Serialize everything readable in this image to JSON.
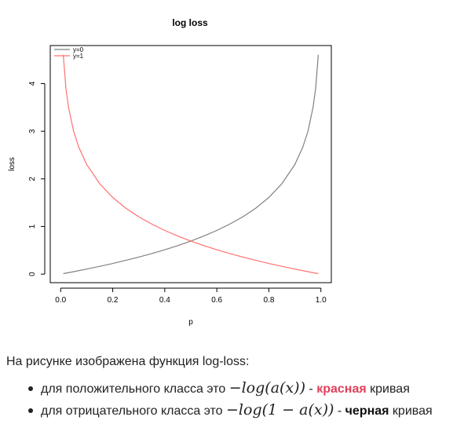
{
  "chart_data": {
    "type": "line",
    "title": "log loss",
    "xlabel": "p",
    "ylabel": "loss",
    "xlim": [
      -0.04,
      1.04
    ],
    "ylim": [
      -0.18,
      4.8
    ],
    "xticks": [
      "0.0",
      "0.2",
      "0.4",
      "0.6",
      "0.8",
      "1.0"
    ],
    "yticks": [
      "0",
      "1",
      "2",
      "3",
      "4"
    ],
    "grid": false,
    "legend_position": "top-left",
    "series": [
      {
        "name": "y=0",
        "color": "#808080",
        "x": [
          0.01,
          0.05,
          0.1,
          0.15,
          0.2,
          0.25,
          0.3,
          0.35,
          0.4,
          0.45,
          0.5,
          0.55,
          0.6,
          0.65,
          0.7,
          0.75,
          0.8,
          0.85,
          0.9,
          0.93,
          0.95,
          0.97,
          0.98,
          0.99
        ],
        "y": [
          0.01,
          0.051,
          0.105,
          0.163,
          0.223,
          0.288,
          0.357,
          0.431,
          0.511,
          0.598,
          0.693,
          0.799,
          0.916,
          1.05,
          1.204,
          1.386,
          1.609,
          1.897,
          2.303,
          2.659,
          2.996,
          3.507,
          3.912,
          4.605
        ]
      },
      {
        "name": "y=1",
        "color": "#ff7070",
        "x": [
          0.01,
          0.02,
          0.03,
          0.05,
          0.07,
          0.1,
          0.15,
          0.2,
          0.25,
          0.3,
          0.35,
          0.4,
          0.45,
          0.5,
          0.55,
          0.6,
          0.65,
          0.7,
          0.75,
          0.8,
          0.85,
          0.9,
          0.95,
          0.99
        ],
        "y": [
          4.605,
          3.912,
          3.507,
          2.996,
          2.659,
          2.303,
          1.897,
          1.609,
          1.386,
          1.204,
          1.05,
          0.916,
          0.799,
          0.693,
          0.598,
          0.511,
          0.431,
          0.357,
          0.288,
          0.223,
          0.163,
          0.105,
          0.051,
          0.01
        ]
      }
    ]
  },
  "text": {
    "intro": "На рисунке изображена функция log-loss:",
    "bullet1_prefix": "для положительного класса это ",
    "bullet1_formula": "−log(a(x))",
    "bullet1_sep": " - ",
    "bullet1_colored": "красная",
    "bullet1_suffix": " кривая",
    "bullet2_prefix": "для отрицательного класса это ",
    "bullet2_formula": "−log(1 − a(x))",
    "bullet2_sep": " - ",
    "bullet2_colored": "черная",
    "bullet2_suffix": " кривая"
  }
}
